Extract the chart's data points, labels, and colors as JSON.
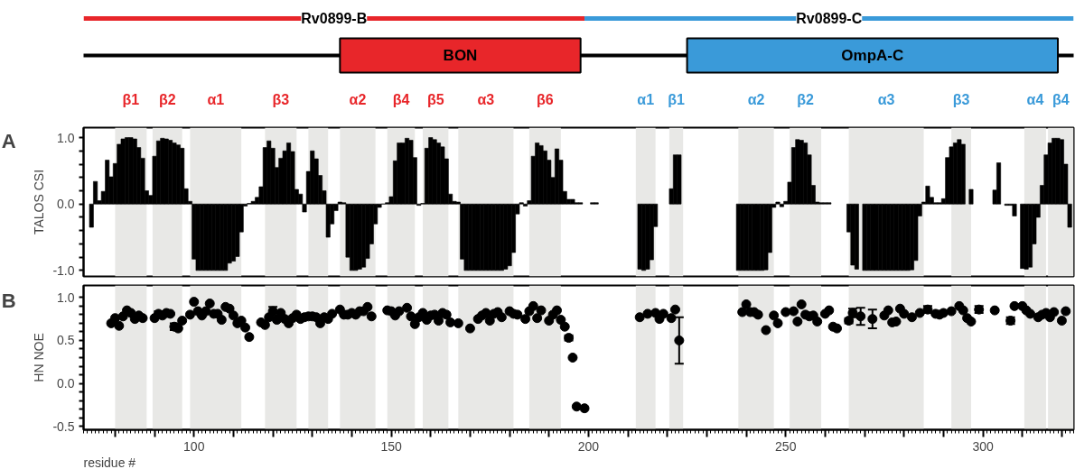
{
  "chart_data": [
    {
      "type": "other",
      "annotations": [
        "Rv0899-B",
        "Rv0899-C",
        "BON",
        "OmpA-C"
      ],
      "colors": [
        "#e8262a",
        "#3a9ad9",
        "#e8262a",
        "#3a9ad9"
      ]
    },
    {
      "type": "bar",
      "title": "A",
      "ylabel": "TALOS CSI",
      "xlim": [
        72,
        323
      ],
      "ylim": [
        -1.09,
        1.15
      ],
      "tick_labels": "y",
      "yticks": [
        {
          "value": 1.0,
          "label": "1.0"
        },
        {
          "value": 0.8,
          "label": null
        },
        {
          "value": 0.6,
          "label": null
        },
        {
          "value": 0.4,
          "label": null
        },
        {
          "value": 0.2,
          "label": null
        },
        {
          "value": 0.0,
          "label": "0.0"
        },
        {
          "value": -0.2,
          "label": null
        },
        {
          "value": -0.4,
          "label": null
        },
        {
          "value": -0.6,
          "label": null
        },
        {
          "value": -0.8,
          "label": null
        },
        {
          "value": -1.0,
          "label": "-1.0"
        }
      ],
      "bands": [
        {
          "axis": "x",
          "from": 80,
          "to": 88,
          "label": "β1",
          "color": "#e8e8e6"
        },
        {
          "axis": "x",
          "from": 89.5,
          "to": 97,
          "label": "β2",
          "color": "#e8e8e6"
        },
        {
          "axis": "x",
          "from": 99,
          "to": 112,
          "label": "α1",
          "color": "#e8e8e6"
        },
        {
          "axis": "x",
          "from": 118,
          "to": 126,
          "label": "β3",
          "color": "#e8e8e6"
        },
        {
          "axis": "x",
          "from": 129,
          "to": 134,
          "label": null,
          "color": "#e8e8e6"
        },
        {
          "axis": "x",
          "from": 137,
          "to": 146,
          "label": "α2",
          "color": "#e8e8e6"
        },
        {
          "axis": "x",
          "from": 149,
          "to": 156,
          "label": "β4",
          "color": "#e8e8e6"
        },
        {
          "axis": "x",
          "from": 158,
          "to": 164.5,
          "label": "β5",
          "color": "#e8e8e6"
        },
        {
          "axis": "x",
          "from": 167,
          "to": 181,
          "label": "α3",
          "color": "#e8e8e6"
        },
        {
          "axis": "x",
          "from": 185,
          "to": 193,
          "label": "β6",
          "color": "#e8e8e6"
        },
        {
          "axis": "x",
          "from": 212,
          "to": 217,
          "label": "α1",
          "color": "#e8e8e6"
        },
        {
          "axis": "x",
          "from": 220.5,
          "to": 224,
          "label": "β1",
          "color": "#e8e8e6"
        },
        {
          "axis": "x",
          "from": 238,
          "to": 247,
          "label": "α2",
          "color": "#e8e8e6"
        },
        {
          "axis": "x",
          "from": 251,
          "to": 259,
          "label": "β2",
          "color": "#e8e8e6"
        },
        {
          "axis": "x",
          "from": 266,
          "to": 285,
          "label": "α3",
          "color": "#e8e8e6"
        },
        {
          "axis": "x",
          "from": 292,
          "to": 297,
          "label": "β3",
          "color": "#e8e8e6"
        },
        {
          "axis": "x",
          "from": 310.5,
          "to": 316,
          "label": "α4",
          "color": "#e8e8e6"
        },
        {
          "axis": "x",
          "from": 316.5,
          "to": 323,
          "label": "β4",
          "color": "#e8e8e6"
        }
      ],
      "series": [
        {
          "color": "#000000",
          "x": [
            74,
            75,
            76,
            77,
            78,
            79,
            80,
            81,
            82,
            83,
            84,
            85,
            86,
            87,
            88,
            89,
            90,
            91,
            92,
            93,
            94,
            95,
            96,
            97,
            98,
            99,
            100,
            101,
            102,
            103,
            104,
            105,
            106,
            107,
            108,
            109,
            110,
            111,
            112,
            113,
            114,
            115,
            116,
            117,
            118,
            119,
            120,
            121,
            122,
            123,
            124,
            125,
            126,
            127,
            128,
            129,
            130,
            131,
            132,
            133,
            134,
            135,
            136,
            137,
            138,
            139,
            140,
            141,
            142,
            143,
            144,
            145,
            146,
            147,
            148,
            149,
            150,
            151,
            152,
            153,
            154,
            155,
            156,
            157,
            158,
            159,
            160,
            161,
            162,
            163,
            164,
            165,
            166,
            167,
            168,
            169,
            170,
            171,
            172,
            173,
            174,
            175,
            176,
            177,
            178,
            179,
            180,
            181,
            182,
            183,
            184,
            185,
            186,
            187,
            188,
            189,
            190,
            191,
            192,
            193,
            194,
            195,
            196,
            197,
            198,
            201,
            202,
            213,
            214,
            215,
            216,
            217,
            221,
            222,
            223,
            238,
            239,
            240,
            241,
            242,
            243,
            244,
            245,
            246,
            247,
            248,
            249,
            250,
            251,
            252,
            253,
            254,
            255,
            256,
            257,
            258,
            259,
            260,
            261,
            266,
            267,
            268,
            270,
            271,
            272,
            273,
            274,
            275,
            276,
            277,
            278,
            279,
            280,
            281,
            282,
            283,
            284,
            285,
            286,
            287,
            288,
            289,
            290,
            291,
            292,
            293,
            294,
            295,
            297,
            303,
            304,
            306,
            307,
            308,
            310,
            311,
            312,
            313,
            314,
            315,
            316,
            317,
            318,
            319,
            320,
            321,
            322
          ],
          "values": [
            -0.35,
            0.34,
            0.05,
            0.19,
            0.66,
            0.41,
            0.61,
            0.9,
            0.98,
            1.0,
            1.0,
            0.98,
            0.85,
            0.69,
            0.2,
            0.13,
            0.72,
            0.95,
            0.99,
            0.98,
            0.96,
            0.92,
            0.89,
            0.84,
            0.23,
            0.04,
            -0.83,
            -1.0,
            -1.0,
            -1.0,
            -1.0,
            -1.0,
            -1.0,
            -1.0,
            -1.0,
            -0.89,
            -0.86,
            -0.79,
            -0.42,
            -0.03,
            0.01,
            0.04,
            0.1,
            0.26,
            0.85,
            0.95,
            0.84,
            0.55,
            0.69,
            0.8,
            0.92,
            0.79,
            0.22,
            0.15,
            -0.12,
            0.49,
            0.8,
            0.68,
            0.43,
            0.2,
            -0.5,
            -0.3,
            -0.1,
            0.03,
            0.02,
            -0.8,
            -1.0,
            -1.0,
            -0.98,
            -0.95,
            -0.82,
            -0.6,
            -0.3,
            -0.05,
            0.0,
            0.02,
            0.11,
            0.65,
            0.92,
            0.92,
            0.99,
            0.96,
            0.7,
            -0.02,
            0.01,
            0.84,
            1.0,
            0.97,
            0.92,
            0.86,
            0.68,
            0.15,
            0.04,
            0.03,
            -0.83,
            -1.0,
            -1.0,
            -1.0,
            -1.0,
            -1.0,
            -1.0,
            -1.0,
            -1.0,
            -1.0,
            -1.0,
            -0.98,
            -0.93,
            -0.73,
            -0.15,
            0.02,
            -0.03,
            0.05,
            0.72,
            0.92,
            0.88,
            0.8,
            0.66,
            0.4,
            0.83,
            0.66,
            0.19,
            0.07,
            0.07,
            0.02,
            0.02,
            0.02,
            0.02,
            -0.98,
            -1.0,
            -0.98,
            -0.84,
            -0.34,
            0.23,
            0.74,
            0.74,
            -1.0,
            -1.0,
            -1.0,
            -1.0,
            -1.0,
            -1.0,
            -1.0,
            -0.99,
            -0.73,
            -0.05,
            0.03,
            -0.04,
            0.04,
            0.33,
            0.85,
            0.97,
            0.96,
            0.92,
            0.74,
            0.28,
            0.03,
            0.02,
            0.02,
            0.02,
            -0.42,
            -0.92,
            -0.98,
            -1.0,
            -1.0,
            -1.0,
            -1.0,
            -1.0,
            -1.0,
            -1.0,
            -1.0,
            -1.0,
            -1.0,
            -1.0,
            -1.0,
            -0.99,
            -0.85,
            -0.18,
            0.03,
            0.27,
            0.1,
            0.02,
            0.02,
            0.08,
            0.7,
            0.86,
            0.92,
            0.97,
            0.9,
            0.22,
            0.21,
            0.62,
            -0.02,
            -0.02,
            -0.18,
            -0.97,
            -0.98,
            -0.95,
            -0.6,
            -0.2,
            0.28,
            0.74,
            0.92,
            0.99,
            0.99,
            0.97,
            0.6,
            -0.35
          ]
        }
      ]
    },
    {
      "type": "scatter",
      "title": "B",
      "ylabel": "HN NOE",
      "xlabel": "residue #",
      "xlim": [
        72,
        323
      ],
      "ylim": [
        -0.54,
        1.14
      ],
      "marker": "circle",
      "xticks": [
        {
          "value": 80,
          "label": null
        },
        {
          "value": 90,
          "label": null
        },
        100,
        {
          "value": 110,
          "label": null
        },
        {
          "value": 120,
          "label": null
        },
        {
          "value": 130,
          "label": null
        },
        {
          "value": 140,
          "label": null
        },
        150,
        {
          "value": 160,
          "label": null
        },
        {
          "value": 170,
          "label": null
        },
        {
          "value": 180,
          "label": null
        },
        {
          "value": 190,
          "label": null
        },
        200,
        {
          "value": 210,
          "label": null
        },
        {
          "value": 220,
          "label": null
        },
        {
          "value": 230,
          "label": null
        },
        {
          "value": 240,
          "label": null
        },
        250,
        {
          "value": 260,
          "label": null
        },
        {
          "value": 270,
          "label": null
        },
        {
          "value": 280,
          "label": null
        },
        {
          "value": 290,
          "label": null
        },
        300,
        {
          "value": 310,
          "label": null
        },
        {
          "value": 320,
          "label": null
        }
      ],
      "yticks": [
        {
          "value": 1.0,
          "label": "1.0"
        },
        {
          "value": 0.9,
          "label": null
        },
        {
          "value": 0.8,
          "label": null
        },
        {
          "value": 0.7,
          "label": null
        },
        {
          "value": 0.6,
          "label": null
        },
        {
          "value": 0.5,
          "label": "0.5"
        },
        {
          "value": 0.4,
          "label": null
        },
        {
          "value": 0.3,
          "label": null
        },
        {
          "value": 0.2,
          "label": null
        },
        {
          "value": 0.1,
          "label": null
        },
        {
          "value": 0.0,
          "label": "0.0"
        },
        {
          "value": -0.1,
          "label": null
        },
        {
          "value": -0.2,
          "label": null
        },
        {
          "value": -0.3,
          "label": null
        },
        {
          "value": -0.4,
          "label": null
        },
        {
          "value": -0.5,
          "label": "-0.5"
        }
      ],
      "bands": [
        {
          "axis": "x",
          "from": 80,
          "to": 88,
          "color": "#e8e8e6"
        },
        {
          "axis": "x",
          "from": 89.5,
          "to": 97,
          "color": "#e8e8e6"
        },
        {
          "axis": "x",
          "from": 99,
          "to": 112,
          "color": "#e8e8e6"
        },
        {
          "axis": "x",
          "from": 118,
          "to": 126,
          "color": "#e8e8e6"
        },
        {
          "axis": "x",
          "from": 129,
          "to": 134,
          "color": "#e8e8e6"
        },
        {
          "axis": "x",
          "from": 137,
          "to": 146,
          "color": "#e8e8e6"
        },
        {
          "axis": "x",
          "from": 149,
          "to": 156,
          "color": "#e8e8e6"
        },
        {
          "axis": "x",
          "from": 158,
          "to": 164.5,
          "color": "#e8e8e6"
        },
        {
          "axis": "x",
          "from": 167,
          "to": 181,
          "color": "#e8e8e6"
        },
        {
          "axis": "x",
          "from": 185,
          "to": 193,
          "color": "#e8e8e6"
        },
        {
          "axis": "x",
          "from": 212,
          "to": 217,
          "color": "#e8e8e6"
        },
        {
          "axis": "x",
          "from": 220.5,
          "to": 224,
          "color": "#e8e8e6"
        },
        {
          "axis": "x",
          "from": 238,
          "to": 247,
          "color": "#e8e8e6"
        },
        {
          "axis": "x",
          "from": 251,
          "to": 259,
          "color": "#e8e8e6"
        },
        {
          "axis": "x",
          "from": 266,
          "to": 285,
          "color": "#e8e8e6"
        },
        {
          "axis": "x",
          "from": 292,
          "to": 297,
          "color": "#e8e8e6"
        },
        {
          "axis": "x",
          "from": 310.5,
          "to": 316,
          "color": "#e8e8e6"
        },
        {
          "axis": "x",
          "from": 316.5,
          "to": 323,
          "color": "#e8e8e6"
        }
      ],
      "series": [
        {
          "color": "#000000",
          "x": [
            79,
            80,
            81,
            82,
            83,
            84,
            85,
            86,
            87,
            90,
            91,
            92,
            93,
            94,
            95,
            96,
            97,
            99,
            100,
            101,
            102,
            103,
            104,
            105,
            106,
            107,
            108,
            109,
            110,
            111,
            112,
            113,
            114,
            117,
            118,
            119,
            120,
            121,
            122,
            123,
            124,
            125,
            126,
            127,
            128,
            129,
            130,
            131,
            132,
            133,
            134,
            135,
            137,
            138,
            139,
            140,
            141,
            142,
            143,
            144,
            145,
            149,
            150,
            151,
            152,
            154,
            155,
            156,
            157,
            158,
            159,
            160,
            161,
            162,
            163,
            164,
            165,
            167,
            170,
            172,
            173,
            174,
            175,
            176,
            177,
            178,
            180,
            181,
            182,
            184,
            185,
            186,
            187,
            188,
            190,
            191,
            192,
            193,
            194,
            195,
            196,
            197,
            199,
            213,
            215,
            217,
            218,
            219,
            221,
            222,
            223,
            239,
            240,
            241,
            242,
            243,
            245,
            247,
            248,
            250,
            252,
            253,
            254,
            255,
            256,
            257,
            258,
            260,
            261,
            262,
            263,
            266,
            267,
            269,
            272,
            275,
            276,
            277,
            278,
            279,
            280,
            282,
            284,
            286,
            288,
            289,
            290,
            292,
            294,
            295,
            296,
            297,
            299,
            303,
            307,
            308,
            310,
            311,
            312,
            314,
            315,
            316,
            317,
            318,
            320,
            321
          ],
          "values": [
            0.7,
            0.76,
            0.67,
            0.78,
            0.85,
            0.82,
            0.75,
            0.79,
            0.76,
            0.76,
            0.81,
            0.79,
            0.82,
            0.81,
            0.66,
            0.64,
            0.73,
            0.8,
            0.95,
            0.84,
            0.79,
            0.84,
            0.93,
            0.81,
            0.81,
            0.74,
            0.89,
            0.87,
            0.79,
            0.7,
            0.73,
            0.65,
            0.54,
            0.71,
            0.68,
            0.77,
            0.84,
            0.74,
            0.82,
            0.75,
            0.7,
            0.76,
            0.8,
            0.75,
            0.77,
            0.78,
            0.78,
            0.77,
            0.7,
            0.77,
            0.75,
            0.81,
            0.86,
            0.8,
            0.8,
            0.82,
            0.8,
            0.84,
            0.84,
            0.89,
            0.78,
            0.85,
            0.84,
            0.79,
            0.84,
            0.88,
            0.78,
            0.69,
            0.77,
            0.82,
            0.74,
            0.79,
            0.8,
            0.73,
            0.82,
            0.8,
            0.71,
            0.7,
            0.64,
            0.75,
            0.79,
            0.82,
            0.73,
            0.81,
            0.83,
            0.77,
            0.84,
            0.81,
            0.8,
            0.75,
            0.84,
            0.9,
            0.76,
            0.85,
            0.73,
            0.8,
            0.85,
            0.74,
            0.66,
            0.53,
            0.3,
            -0.27,
            -0.29,
            0.77,
            0.81,
            0.82,
            0.75,
            0.81,
            0.76,
            0.86,
            0.5,
            0.83,
            0.92,
            0.83,
            0.83,
            0.8,
            0.62,
            0.79,
            0.7,
            0.83,
            0.84,
            0.72,
            0.92,
            0.8,
            0.78,
            0.79,
            0.72,
            0.81,
            0.85,
            0.66,
            0.64,
            0.73,
            0.82,
            0.78,
            0.75,
            0.79,
            0.85,
            0.71,
            0.72,
            0.87,
            0.81,
            0.77,
            0.82,
            0.86,
            0.81,
            0.8,
            0.82,
            0.84,
            0.9,
            0.85,
            0.76,
            0.72,
            0.86,
            0.85,
            0.73,
            0.9,
            0.9,
            0.85,
            0.81,
            0.77,
            0.8,
            0.82,
            0.77,
            0.83,
            0.73,
            0.84
          ],
          "errors": [
            null,
            null,
            null,
            null,
            null,
            null,
            null,
            null,
            null,
            null,
            0.03,
            null,
            null,
            null,
            0.04,
            null,
            null,
            null,
            null,
            null,
            null,
            null,
            null,
            null,
            null,
            null,
            null,
            null,
            null,
            null,
            null,
            null,
            null,
            null,
            null,
            null,
            0.05,
            null,
            null,
            null,
            null,
            null,
            null,
            null,
            null,
            null,
            null,
            null,
            null,
            null,
            null,
            null,
            null,
            null,
            null,
            null,
            null,
            null,
            null,
            null,
            null,
            null,
            null,
            null,
            null,
            null,
            null,
            null,
            null,
            null,
            null,
            null,
            null,
            null,
            null,
            null,
            null,
            null,
            null,
            null,
            null,
            null,
            null,
            null,
            null,
            null,
            null,
            null,
            null,
            null,
            null,
            null,
            null,
            null,
            null,
            null,
            null,
            null,
            null,
            0.03,
            null,
            null,
            null,
            null,
            null,
            null,
            null,
            null,
            null,
            null,
            0.27,
            null,
            null,
            null,
            null,
            null,
            null,
            null,
            null,
            null,
            null,
            null,
            null,
            null,
            null,
            null,
            null,
            null,
            null,
            null,
            null,
            0.03,
            0.05,
            0.1,
            0.11,
            null,
            null,
            null,
            null,
            null,
            null,
            null,
            null,
            0.04,
            null,
            null,
            null,
            null,
            null,
            null,
            null,
            null,
            0.04,
            null,
            0.04,
            null,
            null,
            null,
            null,
            null,
            null,
            null,
            null,
            null,
            null,
            null
          ]
        }
      ]
    }
  ]
}
